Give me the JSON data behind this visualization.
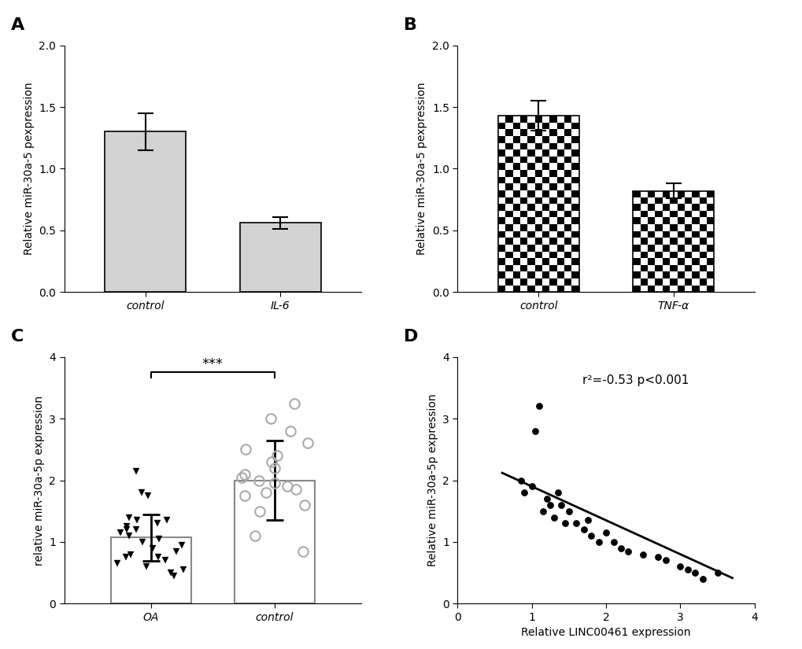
{
  "panel_A": {
    "categories": [
      "control",
      "IL-6"
    ],
    "values": [
      1.3,
      0.56
    ],
    "errors": [
      0.15,
      0.05
    ],
    "bar_color": "#d3d3d3",
    "ylabel": "Relative miR-30a-5 pexpression",
    "ylim": [
      0,
      2.0
    ],
    "yticks": [
      0.0,
      0.5,
      1.0,
      1.5,
      2.0
    ],
    "label": "A"
  },
  "panel_B": {
    "categories": [
      "control",
      "TNF-α"
    ],
    "values": [
      1.43,
      0.82
    ],
    "errors": [
      0.12,
      0.06
    ],
    "ylabel": "Relative miR-30a-5 pexpression",
    "ylim": [
      0,
      2.0
    ],
    "yticks": [
      0.0,
      0.5,
      1.0,
      1.5,
      2.0
    ],
    "label": "B"
  },
  "panel_C": {
    "OA_data": [
      1.0,
      0.95,
      1.35,
      1.3,
      1.25,
      1.2,
      1.15,
      0.85,
      0.75,
      0.7,
      0.65,
      0.55,
      0.45,
      0.8,
      1.1,
      1.4,
      1.35,
      0.9,
      0.6,
      1.2,
      1.05,
      0.75,
      2.15,
      1.8,
      1.75,
      0.5
    ],
    "control_data": [
      2.5,
      3.25,
      3.0,
      2.8,
      2.6,
      2.4,
      2.2,
      2.1,
      2.0,
      1.95,
      1.9,
      1.85,
      1.8,
      1.75,
      1.5,
      0.85,
      1.1,
      2.3,
      1.6,
      2.05
    ],
    "OA_mean": 1.07,
    "OA_sd_low": 0.38,
    "OA_sd_high": 0.38,
    "control_mean": 2.0,
    "control_sd_low": 0.65,
    "control_sd_high": 0.65,
    "ylabel": "relative miR-30a-5p expression",
    "ylim": [
      0,
      4
    ],
    "yticks": [
      0,
      1,
      2,
      3,
      4
    ],
    "label": "C",
    "sig_text": "***"
  },
  "panel_D": {
    "x_data": [
      0.85,
      0.9,
      1.0,
      1.05,
      1.1,
      1.15,
      1.2,
      1.25,
      1.3,
      1.35,
      1.4,
      1.45,
      1.5,
      1.6,
      1.7,
      1.75,
      1.8,
      1.9,
      2.0,
      2.1,
      2.2,
      2.3,
      2.5,
      2.7,
      2.8,
      3.0,
      3.1,
      3.2,
      3.3,
      3.5
    ],
    "y_data": [
      2.0,
      1.8,
      1.9,
      2.8,
      3.2,
      1.5,
      1.7,
      1.6,
      1.4,
      1.8,
      1.6,
      1.3,
      1.5,
      1.3,
      1.2,
      1.35,
      1.1,
      1.0,
      1.15,
      1.0,
      0.9,
      0.85,
      0.8,
      0.75,
      0.7,
      0.6,
      0.55,
      0.5,
      0.4,
      0.5
    ],
    "slope": -0.55,
    "intercept": 2.45,
    "xlabel": "Relative LINC00461 expression",
    "ylabel": "Relative miR-30a-5p expression",
    "xlim": [
      0,
      4
    ],
    "ylim": [
      0,
      4
    ],
    "xticks": [
      0,
      1,
      2,
      3,
      4
    ],
    "yticks": [
      0,
      1,
      2,
      3,
      4
    ],
    "annotation": "r²=-0.53 p<0.001",
    "label": "D"
  },
  "background_color": "#ffffff",
  "panel_label_fontsize": 16,
  "axis_label_fontsize": 10,
  "tick_fontsize": 10
}
